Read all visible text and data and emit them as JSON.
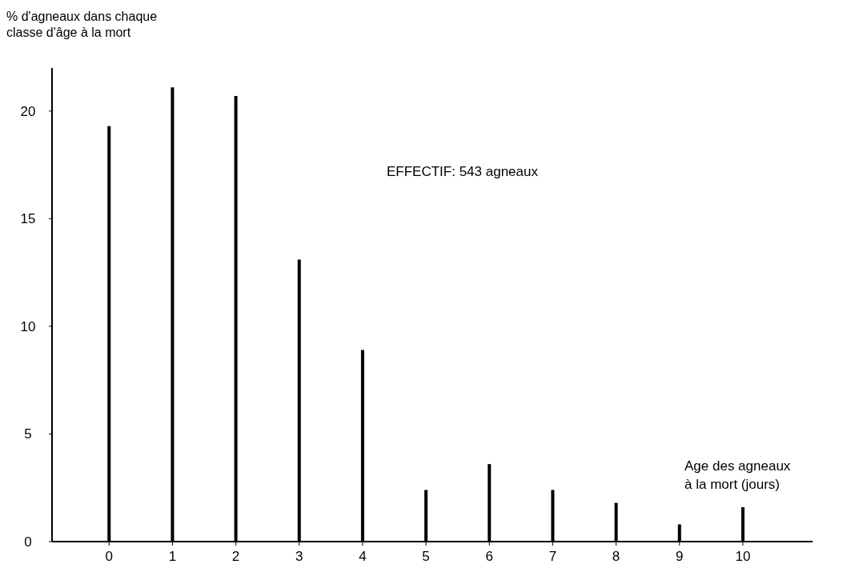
{
  "chart_data": {
    "type": "bar",
    "ylabel": "% d'agneaux dans chaque\nclasse d'âge à la mort",
    "xlabel": "Age des agneaux\nà la mort (jours)",
    "annotations": [
      "EFFECTIF: 543 agneaux"
    ],
    "x": [
      0,
      1,
      2,
      3,
      4,
      5,
      6,
      7,
      8,
      9,
      10
    ],
    "xlim": [
      -0.9,
      11.1
    ],
    "xticks": [
      0,
      1,
      2,
      3,
      4,
      5,
      6,
      7,
      8,
      9,
      10
    ],
    "values": [
      19.3,
      21.1,
      20.7,
      13.1,
      8.9,
      2.4,
      3.6,
      2.4,
      1.8,
      0.8,
      1.6
    ],
    "color": "#000000",
    "ylim": [
      0,
      22
    ],
    "yticks": [
      0,
      5,
      10,
      15,
      20
    ]
  }
}
